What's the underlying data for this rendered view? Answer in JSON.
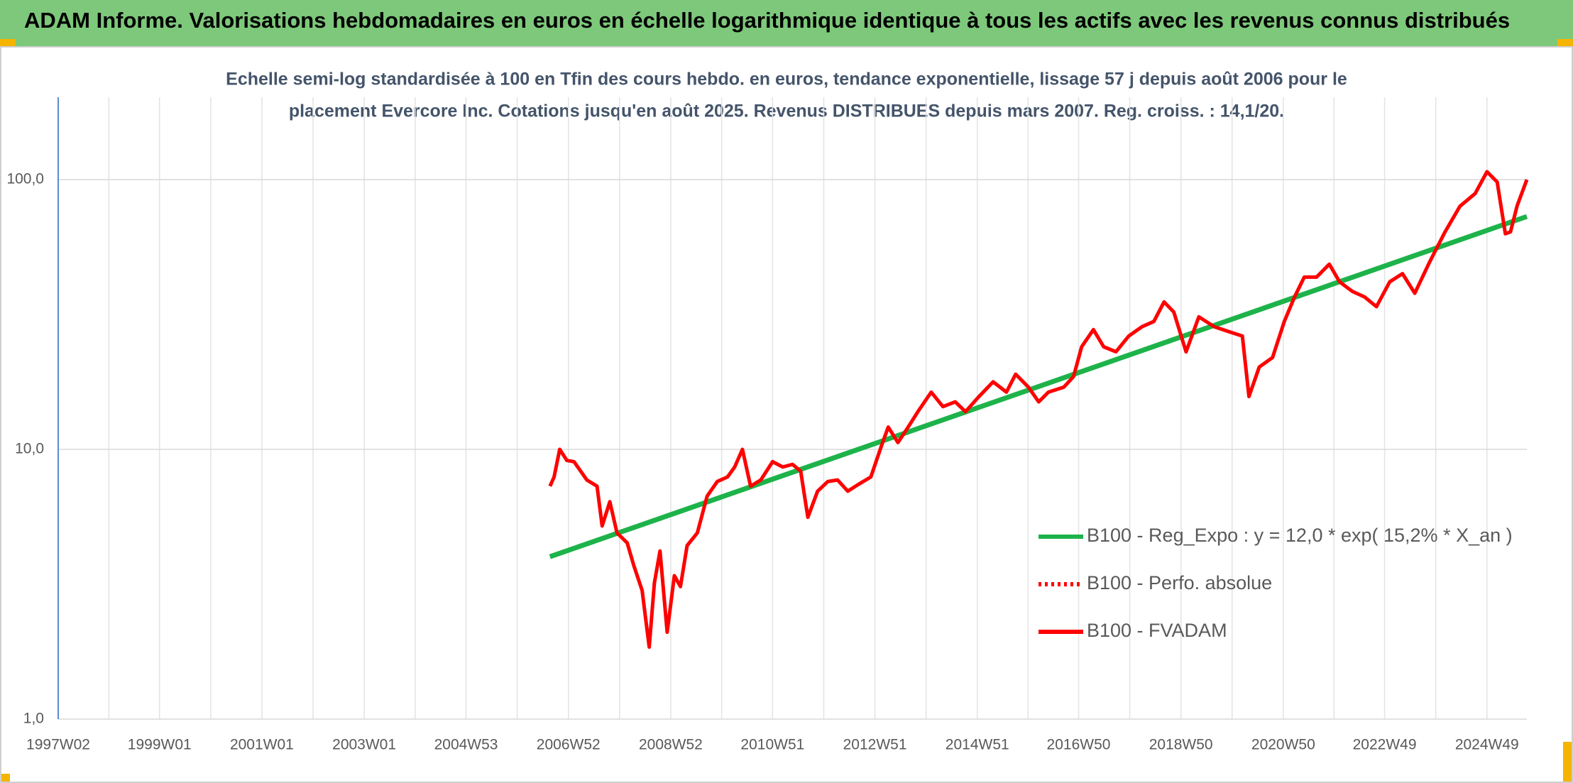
{
  "chart_data": {
    "type": "line",
    "title": "ADAM Informe. Valorisations hebdomadaires en euros en échelle logarithmique identique à tous les actifs avec les revenus connus distribués",
    "subtitle": [
      "Echelle semi-log standardisée à 100 en Tfin des cours hebdo. en euros, tendance exponentielle, lissage 57 j depuis août 2006 pour le",
      "placement Evercore Inc. Cotations jusqu'en août 2025. Revenus DISTRIBUES depuis mars 2007. Reg. croiss. : 14,1/20."
    ],
    "log_y": true,
    "grid": true,
    "legend": "lower-right",
    "xlim": [
      1997.02,
      2025.72
    ],
    "xticks": [
      {
        "value": 1997.02,
        "label": "1997W02"
      },
      {
        "value": 1999.0,
        "label": "1999W01"
      },
      {
        "value": 2001.0,
        "label": "2001W01"
      },
      {
        "value": 2003.0,
        "label": "2003W01"
      },
      {
        "value": 2004.99,
        "label": "2004W53"
      },
      {
        "value": 2006.99,
        "label": "2006W52"
      },
      {
        "value": 2008.99,
        "label": "2008W52"
      },
      {
        "value": 2010.98,
        "label": "2010W51"
      },
      {
        "value": 2012.98,
        "label": "2012W51"
      },
      {
        "value": 2014.98,
        "label": "2014W51"
      },
      {
        "value": 2016.96,
        "label": "2016W50"
      },
      {
        "value": 2018.96,
        "label": "2018W50"
      },
      {
        "value": 2020.96,
        "label": "2020W50"
      },
      {
        "value": 2022.94,
        "label": "2022W49"
      },
      {
        "value": 2024.94,
        "label": "2024W49"
      }
    ],
    "ylim": [
      1,
      202
    ],
    "yticks": [
      {
        "value": 1,
        "label": "1,0"
      },
      {
        "value": 10,
        "label": "10,0"
      },
      {
        "value": 100,
        "label": "100,0"
      }
    ],
    "series": [
      {
        "name": "B100 - Reg_Expo : y = 12,0 * exp( 15,2% *  X_an )",
        "color": "#1db34a",
        "style": "solid",
        "x": [
          2006.63,
          2025.72
        ],
        "values": [
          4.0,
          73
        ]
      },
      {
        "name": "B100 - Perfo. absolue",
        "color": "#ff0000",
        "style": "dotted",
        "x": [],
        "values": []
      },
      {
        "name": "B100 - FVADAM",
        "color": "#ff0000",
        "style": "solid",
        "x": [
          2006.63,
          2006.71,
          2006.82,
          2006.96,
          2007.1,
          2007.35,
          2007.55,
          2007.65,
          2007.8,
          2007.94,
          2008.14,
          2008.27,
          2008.43,
          2008.57,
          2008.67,
          2008.78,
          2008.92,
          2009.06,
          2009.18,
          2009.31,
          2009.51,
          2009.7,
          2009.9,
          2010.1,
          2010.24,
          2010.39,
          2010.55,
          2010.75,
          2010.98,
          2011.18,
          2011.37,
          2011.53,
          2011.67,
          2011.86,
          2012.06,
          2012.25,
          2012.45,
          2012.65,
          2012.9,
          2013.1,
          2013.24,
          2013.43,
          2013.63,
          2013.82,
          2014.08,
          2014.31,
          2014.55,
          2014.75,
          2015.0,
          2015.29,
          2015.55,
          2015.73,
          2015.98,
          2016.18,
          2016.37,
          2016.67,
          2016.86,
          2017.02,
          2017.25,
          2017.45,
          2017.69,
          2017.94,
          2018.2,
          2018.43,
          2018.63,
          2018.82,
          2019.06,
          2019.31,
          2019.61,
          2019.9,
          2020.16,
          2020.29,
          2020.49,
          2020.75,
          2020.98,
          2021.18,
          2021.37,
          2021.61,
          2021.86,
          2022.06,
          2022.31,
          2022.55,
          2022.78,
          2023.04,
          2023.29,
          2023.53,
          2023.82,
          2024.12,
          2024.41,
          2024.71,
          2024.94,
          2025.14,
          2025.3,
          2025.4,
          2025.53,
          2025.72
        ],
        "values": [
          7.3,
          7.9,
          10.0,
          9.1,
          9.0,
          7.7,
          7.3,
          5.2,
          6.4,
          4.9,
          4.5,
          3.7,
          3.0,
          1.85,
          3.2,
          4.2,
          2.1,
          3.4,
          3.1,
          4.4,
          4.9,
          6.7,
          7.6,
          7.9,
          8.6,
          10.0,
          7.3,
          7.7,
          9.0,
          8.6,
          8.8,
          8.3,
          5.6,
          7.0,
          7.6,
          7.7,
          7.0,
          7.4,
          7.9,
          10.2,
          12.1,
          10.6,
          12.1,
          13.8,
          16.3,
          14.4,
          15.0,
          13.8,
          15.6,
          17.8,
          16.3,
          19.0,
          17.0,
          15.0,
          16.3,
          17.0,
          18.6,
          24.0,
          27.8,
          24.0,
          23.0,
          26.3,
          28.5,
          29.8,
          35.2,
          32.3,
          23.0,
          31.0,
          28.5,
          27.3,
          26.3,
          15.7,
          20.2,
          21.9,
          29.8,
          36.7,
          43.5,
          43.5,
          48.6,
          41.8,
          38.5,
          36.7,
          33.8,
          41.8,
          44.8,
          37.9,
          49.5,
          64,
          79.6,
          88.8,
          107,
          98,
          63,
          64,
          80,
          100
        ]
      }
    ]
  }
}
